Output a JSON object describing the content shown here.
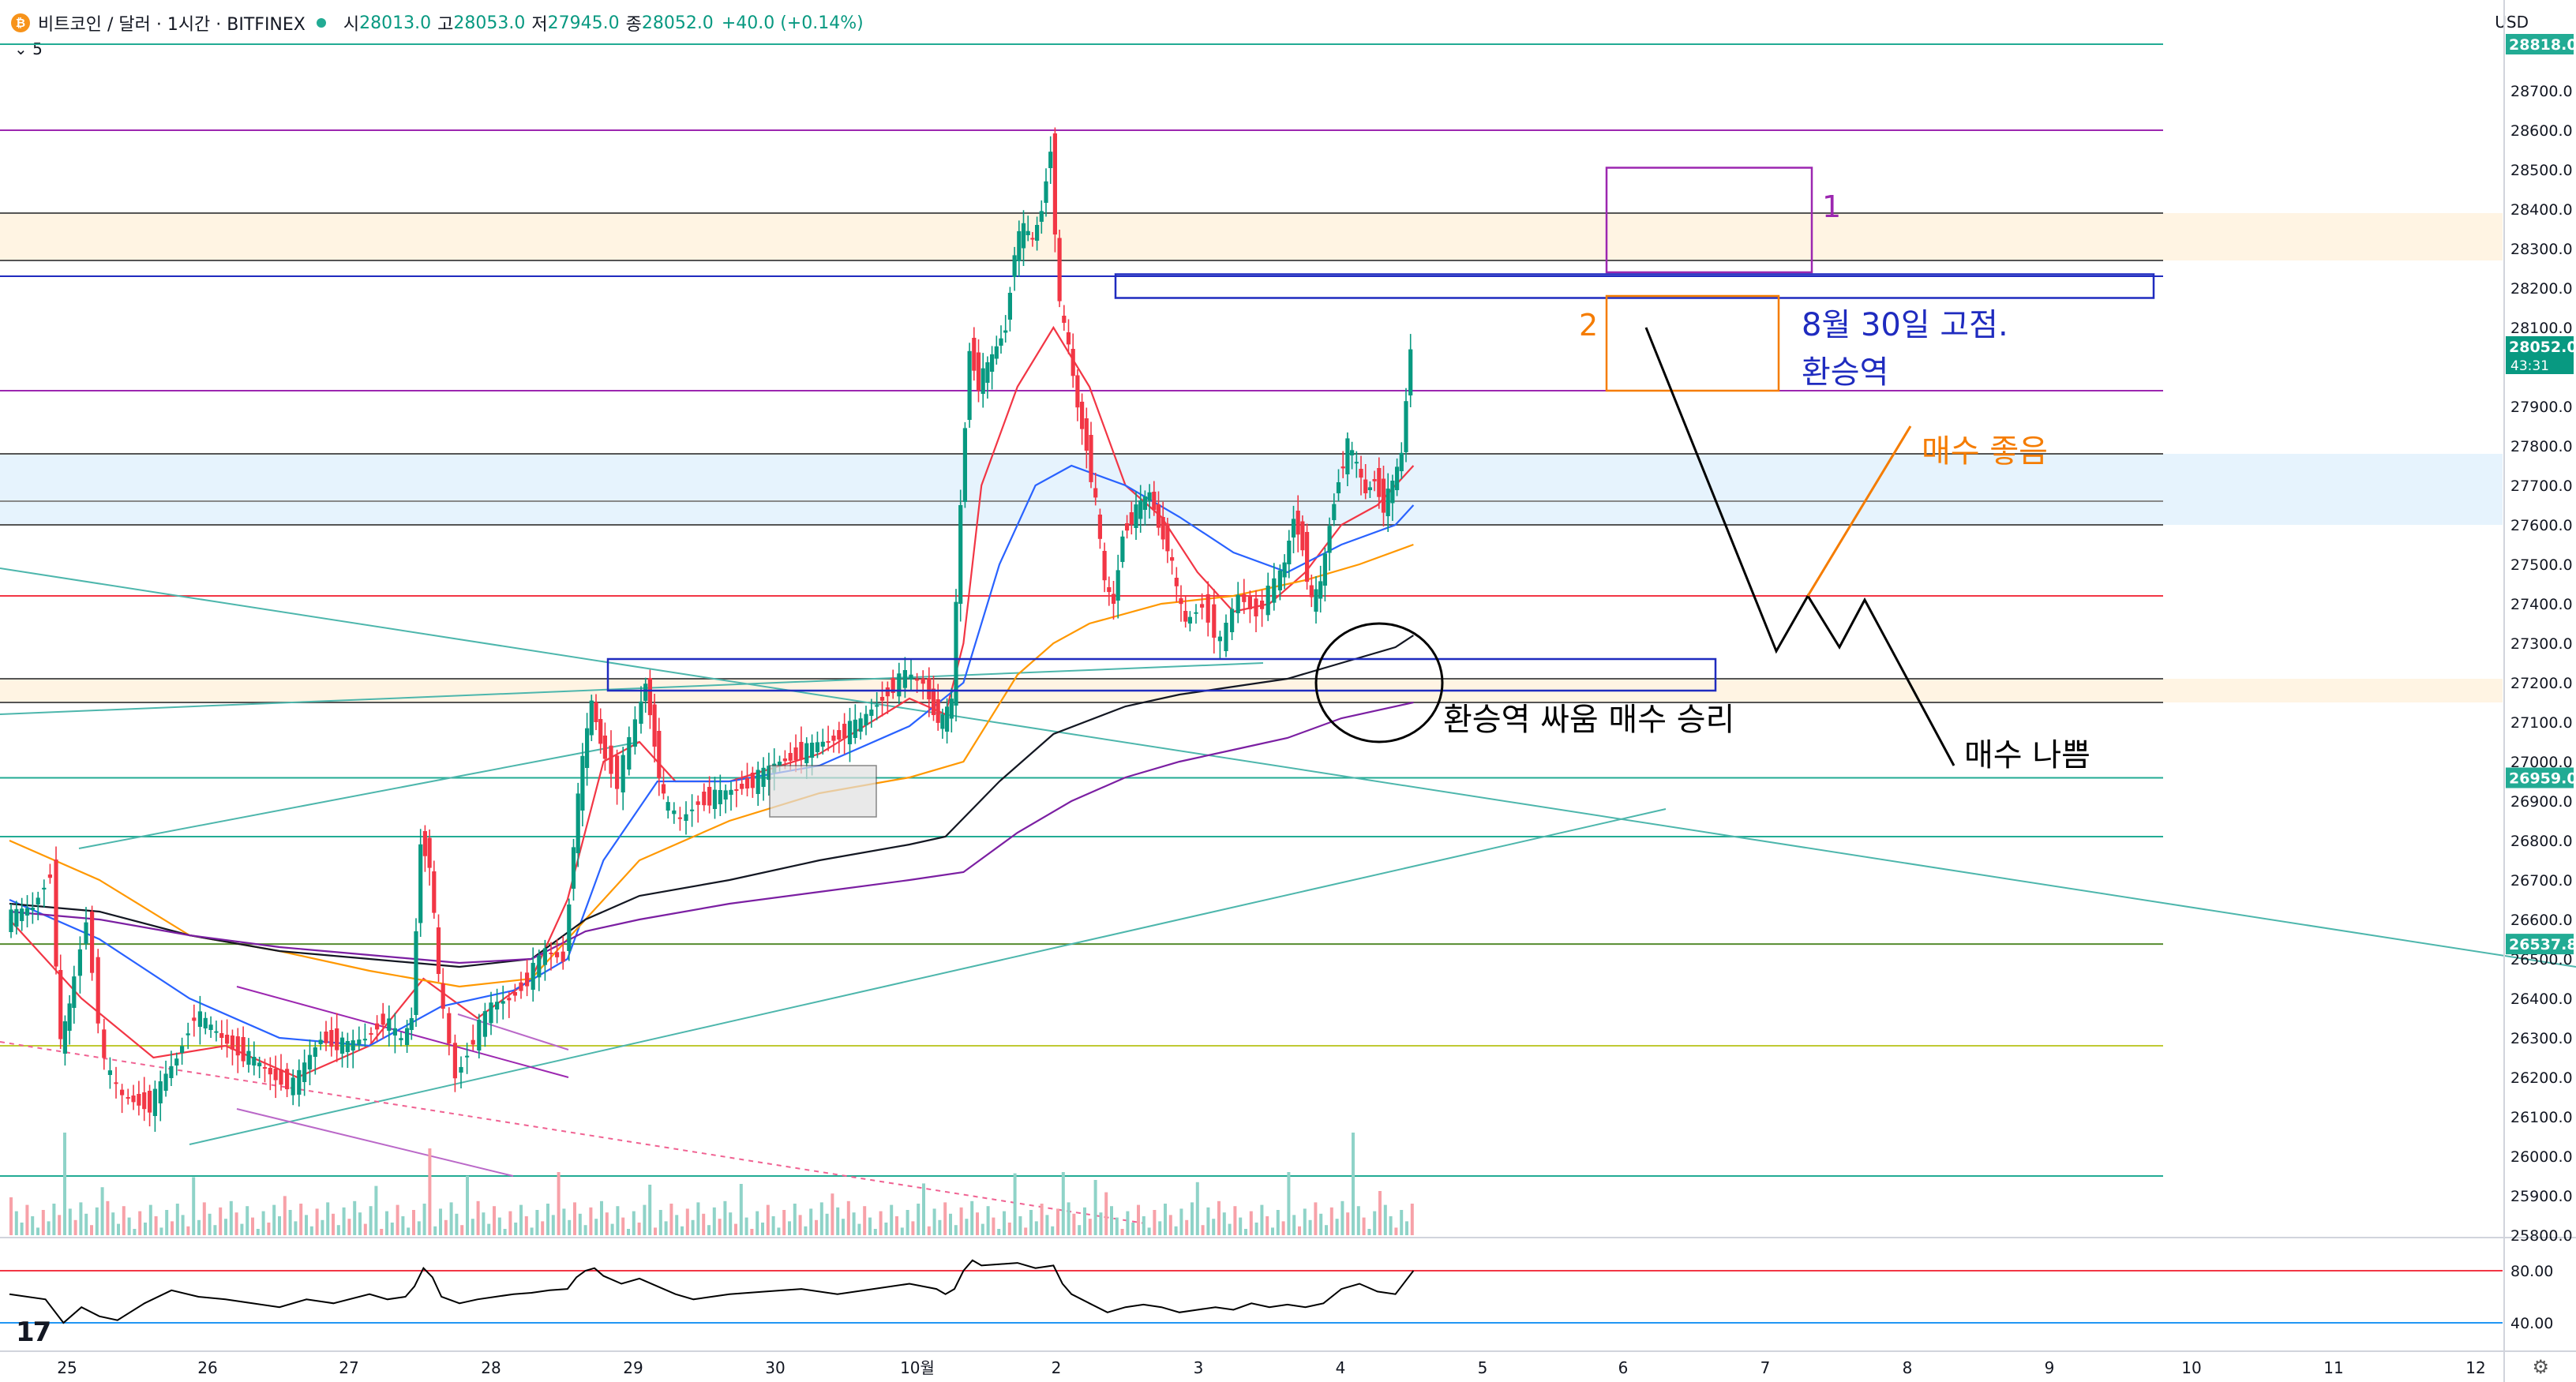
{
  "header": {
    "symbol": "비트코인 / 달러 · 1시간 · BITFINEX",
    "o_label": "시",
    "o_value": "28013.0",
    "h_label": "고",
    "h_value": "28053.0",
    "l_label": "저",
    "l_value": "27945.0",
    "c_label": "종",
    "c_value": "28052.0",
    "change": "+40.0 (+0.14%)",
    "indicator_toggle": "5",
    "currency": "USD"
  },
  "colors": {
    "up": "#089981",
    "down": "#f23645",
    "ema_red": "#f23645",
    "ema_blue": "#2962ff",
    "ema_orange": "#ff9800",
    "ema_black": "#131722",
    "ema_purple": "#7b1fa2",
    "box_blue": "#1f2bbf",
    "box_orange": "#f57c00",
    "box_purple": "#9c27b0"
  },
  "chart_data": {
    "type": "candlestick",
    "symbol": "BTCUSD",
    "exchange": "BITFINEX",
    "interval": "1시간",
    "ylim": [
      25750,
      28850
    ],
    "x_ticks": [
      "25",
      "26",
      "27",
      "28",
      "29",
      "30",
      "10월",
      "2",
      "3",
      "4",
      "5",
      "6",
      "7",
      "8",
      "9",
      "10",
      "11",
      "12"
    ],
    "y_ticks": [
      25800,
      25900,
      26000,
      26100,
      26200,
      26300,
      26400,
      26500,
      26600,
      26700,
      26800,
      26900,
      27000,
      27100,
      27200,
      27300,
      27400,
      27500,
      27600,
      27700,
      27800,
      27900,
      28000,
      28100,
      28200,
      28300,
      28400,
      28500,
      28600,
      28700
    ],
    "price_badges": [
      {
        "label": "28818.0",
        "value": 28818,
        "color": "#22ab94"
      },
      {
        "label": "28052.0",
        "sub": "43:31",
        "value": 28052,
        "color": "#089981"
      },
      {
        "label": "26959.0",
        "value": 26959,
        "color": "#22ab94"
      },
      {
        "label": "26537.8",
        "value": 26537.8,
        "color": "#22ab94"
      }
    ],
    "candle_path": [
      [
        0,
        26600
      ],
      [
        3,
        26630
      ],
      [
        5,
        26720
      ],
      [
        6,
        26280
      ],
      [
        7,
        26380
      ],
      [
        9,
        26600
      ],
      [
        11,
        26230
      ],
      [
        13,
        26150
      ],
      [
        16,
        26130
      ],
      [
        19,
        26250
      ],
      [
        21,
        26360
      ],
      [
        24,
        26300
      ],
      [
        27,
        26250
      ],
      [
        30,
        26200
      ],
      [
        32,
        26180
      ],
      [
        35,
        26300
      ],
      [
        38,
        26280
      ],
      [
        40,
        26300
      ],
      [
        42,
        26350
      ],
      [
        44,
        26290
      ],
      [
        45,
        26350
      ],
      [
        46,
        26800
      ],
      [
        47,
        26750
      ],
      [
        48,
        26450
      ],
      [
        50,
        26200
      ],
      [
        52,
        26300
      ],
      [
        54,
        26380
      ],
      [
        56,
        26400
      ],
      [
        58,
        26450
      ],
      [
        60,
        26520
      ],
      [
        62,
        26500
      ],
      [
        63,
        26800
      ],
      [
        64,
        27000
      ],
      [
        65,
        27150
      ],
      [
        66,
        27050
      ],
      [
        68,
        26950
      ],
      [
        70,
        27100
      ],
      [
        71,
        27200
      ],
      [
        72,
        27050
      ],
      [
        73,
        26900
      ],
      [
        75,
        26850
      ],
      [
        77,
        26900
      ],
      [
        80,
        26920
      ],
      [
        83,
        26950
      ],
      [
        86,
        27000
      ],
      [
        89,
        27030
      ],
      [
        92,
        27060
      ],
      [
        95,
        27100
      ],
      [
        98,
        27180
      ],
      [
        100,
        27220
      ],
      [
        102,
        27200
      ],
      [
        103,
        27130
      ],
      [
        104,
        27100
      ],
      [
        105,
        27150
      ],
      [
        106,
        27650
      ],
      [
        107,
        28050
      ],
      [
        108,
        27960
      ],
      [
        109,
        28000
      ],
      [
        110,
        28050
      ],
      [
        111,
        28100
      ],
      [
        112,
        28300
      ],
      [
        113,
        28350
      ],
      [
        114,
        28320
      ],
      [
        115,
        28400
      ],
      [
        116,
        28560
      ],
      [
        117,
        28150
      ],
      [
        118,
        28050
      ],
      [
        119,
        27900
      ],
      [
        120,
        27800
      ],
      [
        121,
        27650
      ],
      [
        122,
        27450
      ],
      [
        123,
        27400
      ],
      [
        124,
        27580
      ],
      [
        125,
        27620
      ],
      [
        126,
        27650
      ],
      [
        127,
        27680
      ],
      [
        128,
        27600
      ],
      [
        129,
        27550
      ],
      [
        130,
        27430
      ],
      [
        131,
        27350
      ],
      [
        133,
        27400
      ],
      [
        135,
        27300
      ],
      [
        137,
        27420
      ],
      [
        139,
        27380
      ],
      [
        141,
        27450
      ],
      [
        142,
        27500
      ],
      [
        143,
        27620
      ],
      [
        144,
        27550
      ],
      [
        145,
        27400
      ],
      [
        146,
        27450
      ],
      [
        147,
        27600
      ],
      [
        148,
        27720
      ],
      [
        149,
        27800
      ],
      [
        150,
        27750
      ],
      [
        151,
        27680
      ],
      [
        152,
        27720
      ],
      [
        153,
        27650
      ],
      [
        154,
        27700
      ],
      [
        155,
        27780
      ],
      [
        156,
        28052
      ]
    ],
    "moving_averages": [
      {
        "color": "#f23645",
        "points": [
          [
            0,
            26600
          ],
          [
            8,
            26400
          ],
          [
            16,
            26250
          ],
          [
            24,
            26280
          ],
          [
            32,
            26200
          ],
          [
            40,
            26280
          ],
          [
            46,
            26450
          ],
          [
            52,
            26350
          ],
          [
            58,
            26450
          ],
          [
            62,
            26650
          ],
          [
            66,
            27000
          ],
          [
            70,
            27050
          ],
          [
            74,
            26950
          ],
          [
            80,
            26950
          ],
          [
            90,
            27020
          ],
          [
            100,
            27160
          ],
          [
            104,
            27120
          ],
          [
            106,
            27300
          ],
          [
            108,
            27700
          ],
          [
            112,
            27950
          ],
          [
            116,
            28100
          ],
          [
            120,
            27950
          ],
          [
            124,
            27700
          ],
          [
            128,
            27620
          ],
          [
            132,
            27480
          ],
          [
            136,
            27380
          ],
          [
            140,
            27400
          ],
          [
            144,
            27480
          ],
          [
            148,
            27600
          ],
          [
            152,
            27650
          ],
          [
            156,
            27750
          ]
        ]
      },
      {
        "color": "#2962ff",
        "points": [
          [
            0,
            26650
          ],
          [
            10,
            26550
          ],
          [
            20,
            26400
          ],
          [
            30,
            26300
          ],
          [
            40,
            26280
          ],
          [
            48,
            26380
          ],
          [
            56,
            26420
          ],
          [
            62,
            26500
          ],
          [
            66,
            26750
          ],
          [
            72,
            26950
          ],
          [
            80,
            26950
          ],
          [
            90,
            26990
          ],
          [
            100,
            27090
          ],
          [
            106,
            27200
          ],
          [
            110,
            27500
          ],
          [
            114,
            27700
          ],
          [
            118,
            27750
          ],
          [
            124,
            27700
          ],
          [
            130,
            27620
          ],
          [
            136,
            27530
          ],
          [
            142,
            27480
          ],
          [
            148,
            27550
          ],
          [
            154,
            27600
          ],
          [
            156,
            27650
          ]
        ]
      },
      {
        "color": "#ff9800",
        "points": [
          [
            0,
            26800
          ],
          [
            10,
            26700
          ],
          [
            20,
            26560
          ],
          [
            30,
            26520
          ],
          [
            40,
            26470
          ],
          [
            50,
            26430
          ],
          [
            58,
            26450
          ],
          [
            64,
            26600
          ],
          [
            70,
            26750
          ],
          [
            80,
            26850
          ],
          [
            90,
            26920
          ],
          [
            100,
            26960
          ],
          [
            106,
            27000
          ],
          [
            112,
            27220
          ],
          [
            116,
            27300
          ],
          [
            120,
            27350
          ],
          [
            128,
            27400
          ],
          [
            136,
            27420
          ],
          [
            144,
            27460
          ],
          [
            150,
            27500
          ],
          [
            156,
            27550
          ]
        ]
      },
      {
        "color": "#131722",
        "points": [
          [
            0,
            26640
          ],
          [
            10,
            26620
          ],
          [
            20,
            26560
          ],
          [
            30,
            26520
          ],
          [
            40,
            26500
          ],
          [
            50,
            26480
          ],
          [
            58,
            26500
          ],
          [
            64,
            26600
          ],
          [
            70,
            26660
          ],
          [
            80,
            26700
          ],
          [
            90,
            26750
          ],
          [
            100,
            26790
          ],
          [
            104,
            26810
          ],
          [
            110,
            26950
          ],
          [
            116,
            27070
          ],
          [
            124,
            27140
          ],
          [
            130,
            27170
          ],
          [
            136,
            27190
          ],
          [
            142,
            27210
          ],
          [
            148,
            27250
          ],
          [
            154,
            27290
          ],
          [
            156,
            27320
          ]
        ]
      },
      {
        "color": "#7b1fa2",
        "points": [
          [
            0,
            26620
          ],
          [
            10,
            26600
          ],
          [
            20,
            26560
          ],
          [
            30,
            26530
          ],
          [
            40,
            26510
          ],
          [
            50,
            26490
          ],
          [
            58,
            26500
          ],
          [
            64,
            26570
          ],
          [
            70,
            26600
          ],
          [
            80,
            26640
          ],
          [
            90,
            26670
          ],
          [
            100,
            26700
          ],
          [
            106,
            26720
          ],
          [
            112,
            26820
          ],
          [
            118,
            26900
          ],
          [
            124,
            26960
          ],
          [
            130,
            27000
          ],
          [
            136,
            27030
          ],
          [
            142,
            27060
          ],
          [
            148,
            27110
          ],
          [
            156,
            27150
          ]
        ]
      }
    ],
    "annotations": {
      "box1_label": "1",
      "box2_label": "2",
      "fix_note": "8월 30일 고점.",
      "transition_label": "환승역",
      "buy_good": "매수 좋음",
      "buy_bad": "매수 나쁨",
      "battle_win": "환승역 싸움 매수 승리"
    },
    "rsi": {
      "upper": 80.0,
      "lower": 40.0,
      "upper_label": "80.00",
      "lower_label": "40.00",
      "values": [
        [
          0,
          62
        ],
        [
          4,
          58
        ],
        [
          6,
          40
        ],
        [
          8,
          52
        ],
        [
          10,
          45
        ],
        [
          12,
          42
        ],
        [
          15,
          55
        ],
        [
          18,
          65
        ],
        [
          21,
          60
        ],
        [
          24,
          58
        ],
        [
          27,
          55
        ],
        [
          30,
          52
        ],
        [
          33,
          58
        ],
        [
          36,
          55
        ],
        [
          40,
          62
        ],
        [
          42,
          58
        ],
        [
          44,
          60
        ],
        [
          45,
          68
        ],
        [
          46,
          82
        ],
        [
          47,
          75
        ],
        [
          48,
          60
        ],
        [
          50,
          55
        ],
        [
          52,
          58
        ],
        [
          54,
          60
        ],
        [
          56,
          62
        ],
        [
          58,
          63
        ],
        [
          60,
          65
        ],
        [
          62,
          66
        ],
        [
          63,
          75
        ],
        [
          64,
          80
        ],
        [
          65,
          82
        ],
        [
          66,
          76
        ],
        [
          68,
          70
        ],
        [
          70,
          74
        ],
        [
          72,
          68
        ],
        [
          74,
          62
        ],
        [
          76,
          58
        ],
        [
          78,
          60
        ],
        [
          80,
          62
        ],
        [
          84,
          64
        ],
        [
          88,
          66
        ],
        [
          92,
          62
        ],
        [
          96,
          66
        ],
        [
          100,
          70
        ],
        [
          103,
          66
        ],
        [
          104,
          62
        ],
        [
          105,
          66
        ],
        [
          106,
          80
        ],
        [
          107,
          88
        ],
        [
          108,
          84
        ],
        [
          110,
          85
        ],
        [
          112,
          86
        ],
        [
          114,
          82
        ],
        [
          116,
          84
        ],
        [
          117,
          70
        ],
        [
          118,
          62
        ],
        [
          120,
          55
        ],
        [
          122,
          48
        ],
        [
          124,
          52
        ],
        [
          126,
          54
        ],
        [
          128,
          52
        ],
        [
          130,
          48
        ],
        [
          132,
          50
        ],
        [
          134,
          52
        ],
        [
          136,
          50
        ],
        [
          138,
          55
        ],
        [
          140,
          52
        ],
        [
          142,
          54
        ],
        [
          144,
          52
        ],
        [
          146,
          55
        ],
        [
          148,
          66
        ],
        [
          150,
          70
        ],
        [
          152,
          64
        ],
        [
          154,
          62
        ],
        [
          156,
          80
        ]
      ]
    }
  }
}
